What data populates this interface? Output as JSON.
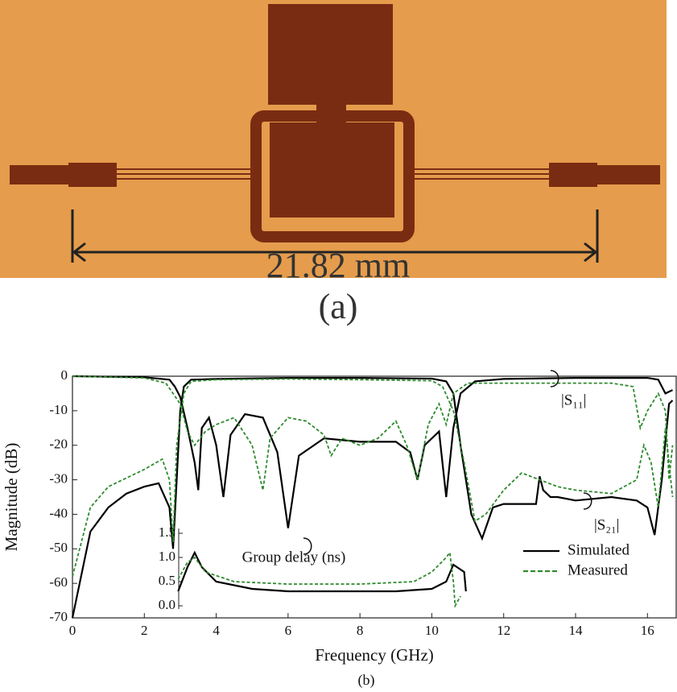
{
  "figure": {
    "dimension_label": "21.82 mm",
    "panel_a_label": "(a)",
    "panel_b_label": "(b)"
  },
  "chart_data": {
    "type": "line",
    "xlabel": "Frequency (GHz)",
    "ylabel": "Magnitude (dB)",
    "xlim": [
      0,
      16.8
    ],
    "xticks": [
      0,
      2,
      4,
      6,
      8,
      10,
      12,
      14,
      16
    ],
    "ylim": [
      -70,
      0
    ],
    "yticks": [
      0,
      -10,
      -20,
      -30,
      -40,
      -50,
      -60,
      -70
    ],
    "y2lim": [
      0,
      1.5
    ],
    "y2ticks": [
      {
        "value": 0,
        "label": "0.0"
      },
      {
        "value": 0.5,
        "label": "0.5"
      },
      {
        "value": 1,
        "label": "1.0"
      },
      {
        "value": 1.5,
        "label": "1.5"
      }
    ],
    "annotations": [
      "|S₁₁|",
      "|S₂₁|",
      "Group delay (ns)"
    ],
    "legend_position": "lower right",
    "series": [
      {
        "name": "Simulated",
        "color": "#000000",
        "line_style": "solid",
        "s21": {
          "x": [
            0,
            0.5,
            1,
            1.5,
            2,
            2.4,
            2.7,
            2.8,
            2.9,
            3.0,
            3.1,
            3.3,
            4,
            6,
            8,
            10,
            10.4,
            10.6,
            10.8,
            11.1,
            11.4,
            11.7,
            12,
            12.5,
            12.9,
            13,
            13.1,
            13.3,
            13.5,
            14,
            15,
            15.7,
            16,
            16.2,
            16.4,
            16.6,
            16.7
          ],
          "values": [
            -70,
            -45,
            -38,
            -34,
            -32,
            -31,
            -38,
            -50,
            -30,
            -10,
            -3,
            -1,
            -0.8,
            -0.5,
            -0.5,
            -0.7,
            -1.5,
            -5,
            -20,
            -40,
            -47,
            -38,
            -37,
            -37,
            -37,
            -29,
            -33,
            -35,
            -35,
            -36,
            -35,
            -36,
            -38,
            -46,
            -30,
            -8,
            -7
          ]
        },
        "s11": {
          "x": [
            0,
            2,
            2.7,
            2.85,
            3.0,
            3.2,
            3.4,
            3.5,
            3.6,
            3.8,
            4.0,
            4.2,
            4.4,
            4.8,
            5.3,
            5.7,
            6.0,
            6.3,
            7,
            8,
            9,
            9.4,
            9.6,
            9.8,
            10.2,
            10.4,
            10.6,
            10.8,
            11.2,
            12,
            14,
            16,
            16.3,
            16.5,
            16.7
          ],
          "values": [
            0,
            -0.3,
            -1,
            -3,
            -6,
            -15,
            -25,
            -33,
            -15,
            -12,
            -20,
            -35,
            -17,
            -11,
            -12,
            -22,
            -44,
            -23,
            -18,
            -19,
            -19,
            -22,
            -30,
            -20,
            -16,
            -35,
            -15,
            -5,
            -1.5,
            -0.8,
            -0.5,
            -0.5,
            -1,
            -5,
            -4
          ]
        },
        "group_delay": {
          "x": [
            2.94,
            3.2,
            3.4,
            3.6,
            4,
            5,
            6,
            8,
            9,
            10,
            10.4,
            10.6,
            10.9,
            10.95
          ],
          "values": [
            0.3,
            0.8,
            1.1,
            0.8,
            0.5,
            0.35,
            0.3,
            0.3,
            0.3,
            0.35,
            0.5,
            0.85,
            0.7,
            0.3
          ]
        }
      },
      {
        "name": "Measured",
        "color": "#2e8b2e",
        "line_style": "dashed",
        "s21": {
          "x": [
            0,
            0.5,
            1,
            2,
            2.5,
            2.7,
            2.8,
            2.9,
            3.1,
            3.3,
            4,
            6,
            8,
            10,
            10.3,
            10.6,
            10.9,
            11.2,
            11.5,
            12,
            12.5,
            13,
            13.5,
            14,
            15,
            15.7,
            15.9,
            16.1,
            16.3,
            16.5,
            16.7
          ],
          "values": [
            -58,
            -38,
            -32,
            -27,
            -24,
            -30,
            -48,
            -20,
            -5,
            -1.5,
            -1,
            -0.8,
            -1,
            -1.3,
            -3,
            -10,
            -25,
            -42,
            -40,
            -33,
            -28,
            -30,
            -32,
            -33,
            -34,
            -30,
            -20,
            -25,
            -38,
            -15,
            -35
          ]
        },
        "s11": {
          "x": [
            0,
            2,
            2.6,
            3.0,
            3.2,
            3.4,
            3.7,
            4,
            4.5,
            5,
            5.3,
            5.5,
            6,
            6.5,
            7,
            7.2,
            7.5,
            8,
            8.5,
            9,
            9.3,
            9.6,
            9.9,
            10.2,
            10.4,
            10.6,
            11,
            12,
            14,
            15,
            15.6,
            15.8,
            16,
            16.3,
            16.5,
            16.6,
            16.7
          ],
          "values": [
            0,
            -0.5,
            -2,
            -8,
            -16,
            -20,
            -16,
            -14,
            -12,
            -20,
            -33,
            -18,
            -12,
            -13,
            -17,
            -23,
            -18,
            -20,
            -18,
            -13,
            -20,
            -30,
            -14,
            -8,
            -14,
            -5,
            -2,
            -2,
            -2,
            -2,
            -3,
            -15,
            -10,
            -5,
            -10,
            -30,
            -20
          ]
        },
        "group_delay": {
          "x": [
            2.94,
            3.2,
            3.4,
            3.7,
            4.5,
            6,
            8,
            9.5,
            10,
            10.4,
            10.5,
            10.6,
            10.65,
            10.8
          ],
          "values": [
            0.55,
            0.9,
            1.0,
            0.7,
            0.5,
            0.45,
            0.45,
            0.5,
            0.7,
            1.0,
            1.1,
            0.5,
            0.0,
            0.2
          ]
        }
      }
    ]
  }
}
